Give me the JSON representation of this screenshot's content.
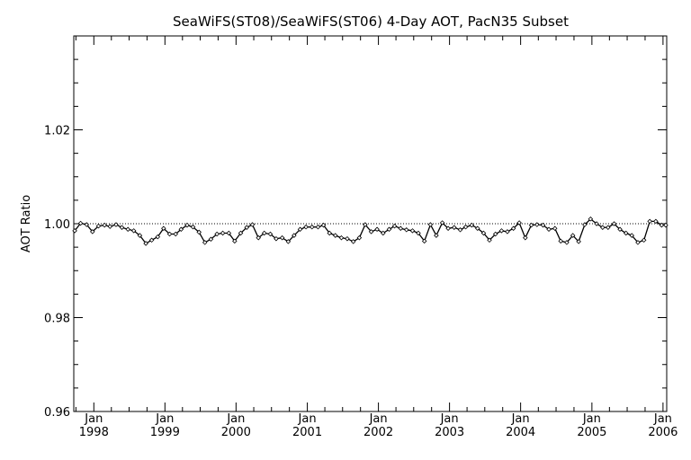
{
  "chart_data": {
    "type": "line",
    "title": "SeaWiFS(ST08)/SeaWiFS(ST06) 4-Day AOT, PacN35 Subset",
    "xlabel": "",
    "ylabel": "AOT Ratio",
    "xlim": [
      "1997-09-20",
      "2006-01-20"
    ],
    "ylim": [
      0.96,
      1.04
    ],
    "y_ticks": [
      "0.96",
      "0.98",
      "1.00",
      "1.02"
    ],
    "x_ticks": [
      {
        "month": "Jan",
        "year": "1998",
        "date": "1998-01-01"
      },
      {
        "month": "Jan",
        "year": "1999",
        "date": "1999-01-01"
      },
      {
        "month": "Jan",
        "year": "2000",
        "date": "2000-01-01"
      },
      {
        "month": "Jan",
        "year": "2001",
        "date": "2001-01-01"
      },
      {
        "month": "Jan",
        "year": "2002",
        "date": "2002-01-01"
      },
      {
        "month": "Jan",
        "year": "2003",
        "date": "2003-01-01"
      },
      {
        "month": "Jan",
        "year": "2004",
        "date": "2004-01-01"
      },
      {
        "month": "Jan",
        "year": "2005",
        "date": "2005-01-01"
      },
      {
        "month": "Jan",
        "year": "2006",
        "date": "2006-01-01"
      }
    ],
    "reference_line": 1.0,
    "series": [
      {
        "x": [
          "1997-09-25",
          "1997-10-25",
          "1997-11-25",
          "1997-12-25",
          "1998-01-25",
          "1998-02-25",
          "1998-03-25",
          "1998-04-25",
          "1998-05-25",
          "1998-06-25",
          "1998-07-25",
          "1998-08-25",
          "1998-09-25",
          "1998-10-25",
          "1998-11-25",
          "1998-12-25",
          "1999-01-25",
          "1999-02-25",
          "1999-03-25",
          "1999-04-25",
          "1999-05-25",
          "1999-06-25",
          "1999-07-25",
          "1999-08-25",
          "1999-09-25",
          "1999-10-25",
          "1999-11-25",
          "1999-12-25",
          "2000-01-25",
          "2000-02-25",
          "2000-03-25",
          "2000-04-25",
          "2000-05-25",
          "2000-06-25",
          "2000-07-25",
          "2000-08-25",
          "2000-09-25",
          "2000-10-25",
          "2000-11-25",
          "2000-12-25",
          "2001-01-25",
          "2001-02-25",
          "2001-03-25",
          "2001-04-25",
          "2001-05-25",
          "2001-06-25",
          "2001-07-25",
          "2001-08-25",
          "2001-09-25",
          "2001-10-25",
          "2001-11-25",
          "2001-12-25",
          "2002-01-25",
          "2002-02-25",
          "2002-03-25",
          "2002-04-25",
          "2002-05-25",
          "2002-06-25",
          "2002-07-25",
          "2002-08-25",
          "2002-09-25",
          "2002-10-25",
          "2002-11-25",
          "2002-12-25",
          "2003-01-25",
          "2003-02-25",
          "2003-03-25",
          "2003-04-25",
          "2003-05-25",
          "2003-06-25",
          "2003-07-25",
          "2003-08-25",
          "2003-09-25",
          "2003-10-25",
          "2003-11-25",
          "2003-12-25",
          "2004-01-25",
          "2004-02-25",
          "2004-03-25",
          "2004-04-25",
          "2004-05-25",
          "2004-06-25",
          "2004-07-25",
          "2004-08-25",
          "2004-09-25",
          "2004-10-25",
          "2004-11-25",
          "2004-12-25",
          "2005-01-25",
          "2005-02-25",
          "2005-03-25",
          "2005-04-25",
          "2005-05-25",
          "2005-06-25",
          "2005-07-25",
          "2005-08-25",
          "2005-09-25",
          "2005-10-25",
          "2005-11-25",
          "2005-12-25",
          "2006-01-15"
        ],
        "y": [
          0.9985,
          1.0001,
          0.9998,
          0.9983,
          0.9995,
          0.9997,
          0.9994,
          0.9998,
          0.9992,
          0.9988,
          0.9985,
          0.9975,
          0.9958,
          0.9965,
          0.9972,
          0.999,
          0.9978,
          0.9978,
          0.9988,
          0.9997,
          0.9993,
          0.9982,
          0.996,
          0.9967,
          0.9978,
          0.998,
          0.998,
          0.9963,
          0.998,
          0.9992,
          0.9998,
          0.997,
          0.998,
          0.9978,
          0.9968,
          0.997,
          0.9962,
          0.9975,
          0.9988,
          0.9993,
          0.9993,
          0.9993,
          0.9997,
          0.998,
          0.9975,
          0.997,
          0.9968,
          0.9962,
          0.997,
          0.9998,
          0.9983,
          0.9988,
          0.998,
          0.9988,
          0.9995,
          0.999,
          0.9987,
          0.9985,
          0.998,
          0.9963,
          0.9998,
          0.9975,
          1.0002,
          0.999,
          0.9992,
          0.9987,
          0.9993,
          0.9997,
          0.999,
          0.998,
          0.9965,
          0.9978,
          0.9985,
          0.9983,
          0.999,
          1.0002,
          0.997,
          0.9997,
          0.9998,
          0.9997,
          0.9988,
          0.999,
          0.9963,
          0.996,
          0.9975,
          0.9962,
          0.9998,
          1.001,
          1.0,
          0.9992,
          0.9992,
          1.0,
          0.9988,
          0.998,
          0.9975,
          0.996,
          0.9965,
          1.0005,
          1.0005,
          0.9997,
          0.9997
        ]
      }
    ],
    "grid": false,
    "legend": "none"
  }
}
